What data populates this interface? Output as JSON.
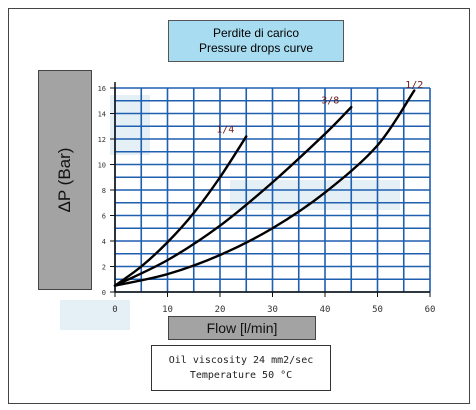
{
  "chart_data": {
    "type": "line",
    "title": "Perdite di carico",
    "subtitle": "Pressure drops curve",
    "xlabel": "Flow [l/min]",
    "ylabel": "ΔP (Bar)",
    "xlim": [
      0,
      60
    ],
    "ylim": [
      0,
      16
    ],
    "grid": true,
    "x_ticks": [
      "0",
      "10",
      "20",
      "30",
      "40",
      "50",
      "60"
    ],
    "y_ticks": [
      "0",
      "2",
      "4",
      "6",
      "8",
      "10",
      "12",
      "14",
      "16"
    ],
    "notes": [
      "Oil viscosity 24 mm2/sec",
      "Temperature 50 °C"
    ],
    "series": [
      {
        "name": "1/4",
        "x": [
          0,
          5,
          10,
          15,
          20,
          25
        ],
        "y": [
          0.5,
          2,
          3.9,
          6.2,
          9,
          12.2
        ],
        "label_x": 21,
        "label_y": 12.5
      },
      {
        "name": "3/8",
        "x": [
          0,
          10,
          20,
          30,
          40,
          45
        ],
        "y": [
          0.5,
          2.5,
          5.2,
          8.6,
          12.4,
          14.5
        ],
        "label_x": 41,
        "label_y": 14.8
      },
      {
        "name": "1/2",
        "x": [
          0,
          10,
          20,
          30,
          40,
          50,
          57
        ],
        "y": [
          0.5,
          1.4,
          2.9,
          5,
          7.8,
          11.5,
          15.8
        ],
        "label_x": 57,
        "label_y": 16
      }
    ]
  }
}
